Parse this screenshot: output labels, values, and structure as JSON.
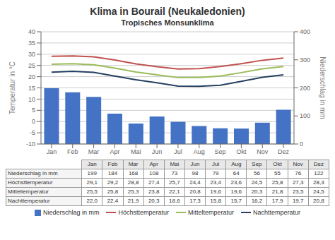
{
  "chart_data": {
    "type": "bar",
    "title": "Klima in Bourail (Neukaledonien)",
    "subtitle": "Tropisches Monsunklima",
    "categories": [
      "Jan",
      "Feb",
      "Mar",
      "Apr",
      "Mai",
      "Jun",
      "Jul",
      "Aug",
      "Sep",
      "Okt",
      "Nov",
      "Dez"
    ],
    "series": [
      {
        "name": "Niederschlag in mm",
        "type": "bar",
        "axis": "y2",
        "color": "#4472C4",
        "values": [
          199,
          184,
          168,
          108,
          73,
          98,
          79,
          64,
          56,
          55,
          76,
          122
        ]
      },
      {
        "name": "Höchsttemperatur",
        "type": "line",
        "color": "#C0504D",
        "values": [
          29.1,
          29.2,
          28.8,
          27.4,
          25.7,
          24.4,
          23.4,
          23.6,
          24.5,
          25.8,
          27.3,
          28.3
        ],
        "value_labels": [
          "29,1",
          "29,2",
          "28,8",
          "27,4",
          "25,7",
          "24,4",
          "23,4",
          "23,6",
          "24,5",
          "25,8",
          "27,3",
          "28,3"
        ]
      },
      {
        "name": "Mitteltemperatur",
        "type": "line",
        "color": "#9BBB59",
        "values": [
          25.5,
          25.8,
          25.3,
          23.8,
          22.1,
          20.8,
          19.6,
          19.6,
          20.3,
          21.8,
          23.5,
          24.5
        ],
        "value_labels": [
          "25,5",
          "25,8",
          "25,3",
          "23,8",
          "22,1",
          "20,8",
          "19,6",
          "19,6",
          "20,3",
          "21,8",
          "23,5",
          "24,5"
        ]
      },
      {
        "name": "Nachttemperatur",
        "type": "line",
        "color": "#243F60",
        "values": [
          22.0,
          22.4,
          21.9,
          20.3,
          18.6,
          17.3,
          15.8,
          15.7,
          16.2,
          17.9,
          19.7,
          20.8
        ],
        "value_labels": [
          "22,0",
          "22,4",
          "21,9",
          "20,3",
          "18,6",
          "17,3",
          "15,8",
          "15,7",
          "16,2",
          "17,9",
          "19,7",
          "20,8"
        ]
      }
    ],
    "ylabel": "Temperatur in °C",
    "y2label": "Niederschlag in mm",
    "ylim": [
      -10,
      40
    ],
    "yticks": [
      -10,
      -5,
      0,
      5,
      10,
      15,
      20,
      25,
      30,
      35,
      40
    ],
    "y2lim": [
      0,
      400
    ],
    "y2ticks": [
      0,
      100,
      200,
      300,
      400
    ],
    "grid": true,
    "legend": "bottom"
  }
}
